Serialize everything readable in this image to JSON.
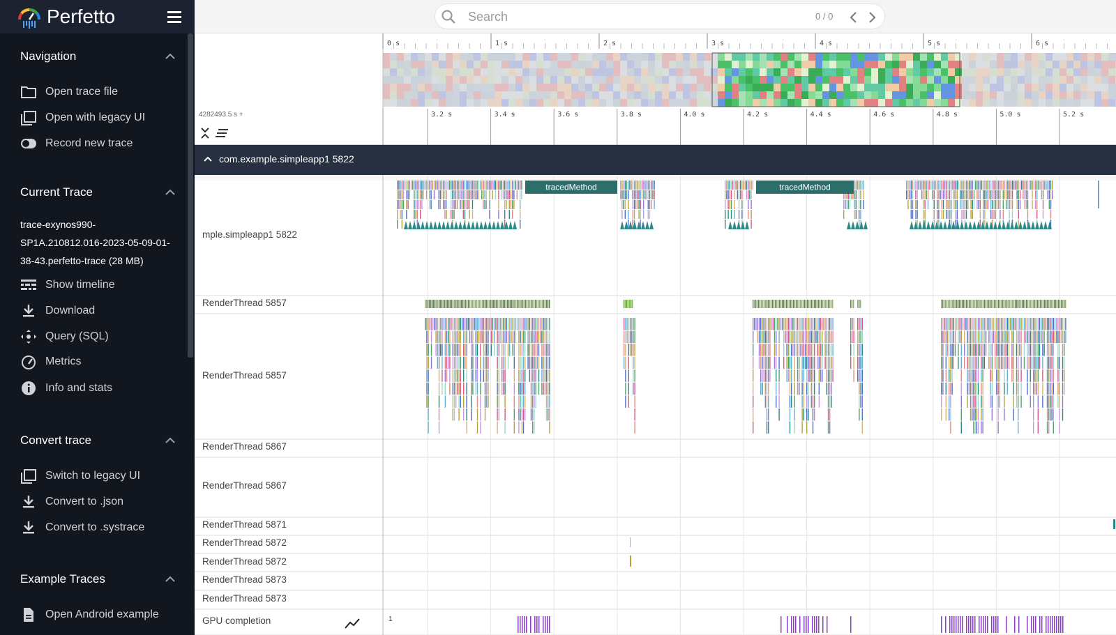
{
  "app": {
    "title": "Perfetto"
  },
  "icons": {
    "menu": "hamburger-icon",
    "search": "search-icon",
    "prev": "chevron-left-icon",
    "next": "chevron-right-icon"
  },
  "sidebar": {
    "sections": [
      {
        "title": "Navigation",
        "items": [
          {
            "label": "Open trace file",
            "icon": "folder-icon"
          },
          {
            "label": "Open with legacy UI",
            "icon": "filter-none-icon"
          },
          {
            "label": "Record new trace",
            "icon": "toggle-icon"
          }
        ]
      },
      {
        "title": "Current Trace",
        "trace_name": "trace-exynos990-SP1A.210812.016-2023-05-09-01-38-43.perfetto-trace (28 MB)",
        "items": [
          {
            "label": "Show timeline",
            "icon": "timeline-icon"
          },
          {
            "label": "Download",
            "icon": "download-icon"
          },
          {
            "label": "Query (SQL)",
            "icon": "query-icon"
          },
          {
            "label": "Metrics",
            "icon": "speedometer-icon"
          },
          {
            "label": "Info and stats",
            "icon": "info-icon"
          }
        ]
      },
      {
        "title": "Convert trace",
        "items": [
          {
            "label": "Switch to legacy UI",
            "icon": "filter-none-icon"
          },
          {
            "label": "Convert to .json",
            "icon": "download-icon"
          },
          {
            "label": "Convert to .systrace",
            "icon": "download-icon"
          }
        ]
      },
      {
        "title": "Example Traces",
        "items": [
          {
            "label": "Open Android example",
            "icon": "description-icon"
          }
        ]
      }
    ]
  },
  "search": {
    "placeholder": "Search",
    "count": "0 / 0"
  },
  "overview": {
    "ticks": [
      "0 s",
      "1 s",
      "2 s",
      "3 s",
      "4 s",
      "5 s",
      "6 s"
    ]
  },
  "ruler": {
    "offset": "4282493.5 s +",
    "ticks": [
      "3.2 s",
      "3.4 s",
      "3.6 s",
      "3.8 s",
      "4.0 s",
      "4.2 s",
      "4.4 s",
      "4.6 s",
      "4.8 s",
      "5.0 s",
      "5.2 s"
    ]
  },
  "process": {
    "title": "com.example.simpleapp1 5822"
  },
  "tracks": [
    {
      "label": "mple.simpleapp1 5822",
      "slices": [
        "tracedMethod",
        "tracedMethod"
      ]
    },
    {
      "label": "RenderThread 5857"
    },
    {
      "label": "RenderThread 5857"
    },
    {
      "label": "RenderThread 5867"
    },
    {
      "label": "RenderThread 5867"
    },
    {
      "label": "RenderThread 5871"
    },
    {
      "label": "RenderThread 5872"
    },
    {
      "label": "RenderThread 5872"
    },
    {
      "label": "RenderThread 5873"
    },
    {
      "label": "RenderThread 5873"
    },
    {
      "label": "GPU completion",
      "value_label": "1",
      "icon": "show-chart-icon"
    }
  ],
  "colors": {
    "sidebar_bg": "#12161e",
    "header_bg": "#263040",
    "slice_teal": "#2b7a78",
    "accent_purple": "#8a3fc4"
  }
}
